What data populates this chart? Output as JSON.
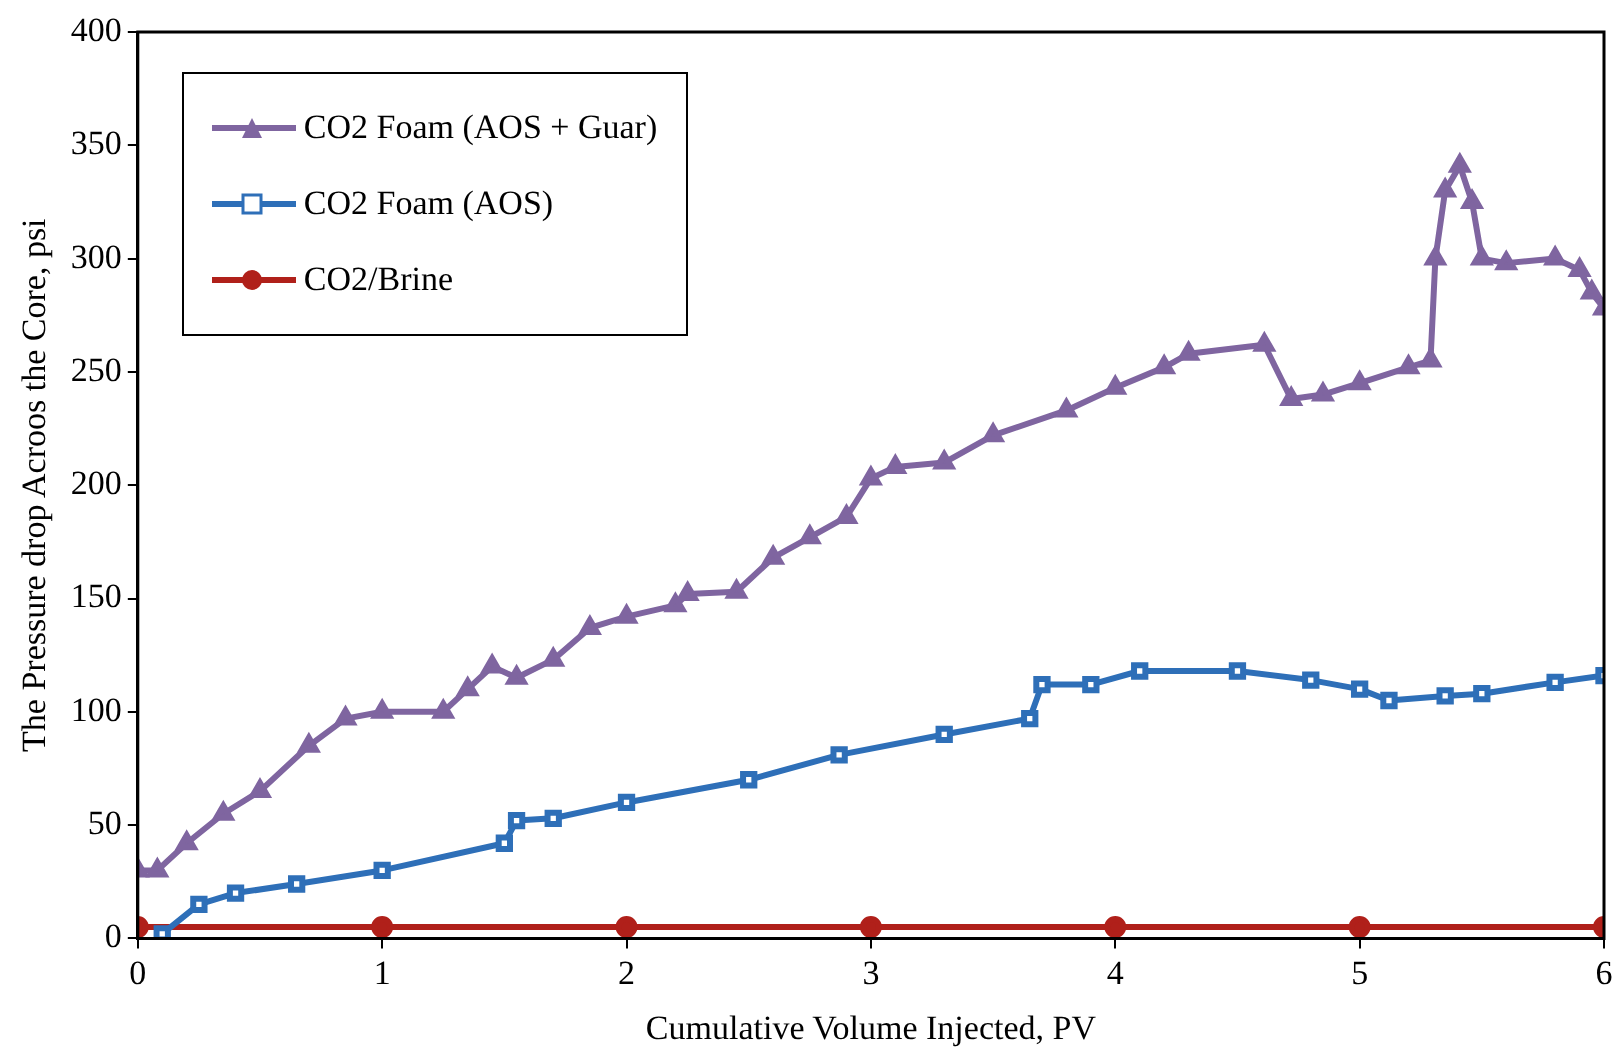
{
  "chart_data": {
    "type": "line",
    "xlabel": "Cumulative Volume Injected, PV",
    "ylabel": "The Pressure drop Acroos the Core, psi",
    "xlim": [
      0,
      6
    ],
    "xticks": [
      0,
      1,
      2,
      3,
      4,
      5,
      6
    ],
    "ylim": [
      0,
      400
    ],
    "yticks": [
      0,
      50,
      100,
      150,
      200,
      250,
      300,
      350,
      400
    ],
    "grid": false,
    "legend": "top left",
    "line_style": "solid",
    "series": [
      {
        "name": "CO2 Foam (AOS + Guar)",
        "color": "#7f65a0",
        "marker": "triangle",
        "x": [
          0,
          0.08,
          0.2,
          0.35,
          0.5,
          0.7,
          0.85,
          1.0,
          1.25,
          1.35,
          1.45,
          1.55,
          1.7,
          1.85,
          2.0,
          2.2,
          2.25,
          2.45,
          2.6,
          2.75,
          2.9,
          3.0,
          3.1,
          3.3,
          3.5,
          3.8,
          4.0,
          4.2,
          4.3,
          4.61,
          4.72,
          4.85,
          5.0,
          5.2,
          5.29,
          5.31,
          5.35,
          5.41,
          5.46,
          5.5,
          5.6,
          5.8,
          5.9,
          5.95,
          6.0
        ],
        "values": [
          30,
          30,
          42,
          55,
          65,
          85,
          97,
          100,
          100,
          110,
          120,
          115,
          123,
          137,
          142,
          147,
          152,
          153,
          168,
          177,
          186,
          203,
          208,
          210,
          222,
          233,
          243,
          252,
          258,
          262,
          238,
          240,
          245,
          252,
          255,
          300,
          330,
          341,
          325,
          300,
          298,
          300,
          295,
          285,
          278
        ]
      },
      {
        "name": "CO2 Foam (AOS)",
        "color": "#2e6fb8",
        "marker": "square",
        "x": [
          0.1,
          0.25,
          0.4,
          0.65,
          1.0,
          1.5,
          1.55,
          1.7,
          2.0,
          2.5,
          2.87,
          3.3,
          3.65,
          3.7,
          3.9,
          4.1,
          4.5,
          4.8,
          5.0,
          5.12,
          5.35,
          5.5,
          5.8,
          6.0
        ],
        "values": [
          2,
          15,
          20,
          24,
          30,
          42,
          52,
          53,
          60,
          70,
          81,
          90,
          97,
          112,
          112,
          118,
          118,
          114,
          110,
          105,
          107,
          108,
          113,
          116
        ]
      },
      {
        "name": "CO2/Brine",
        "color": "#b0201a",
        "marker": "circle",
        "x": [
          0,
          1,
          2,
          3,
          4,
          5,
          6
        ],
        "values": [
          5,
          5,
          5,
          5,
          5,
          5,
          5
        ]
      }
    ]
  }
}
